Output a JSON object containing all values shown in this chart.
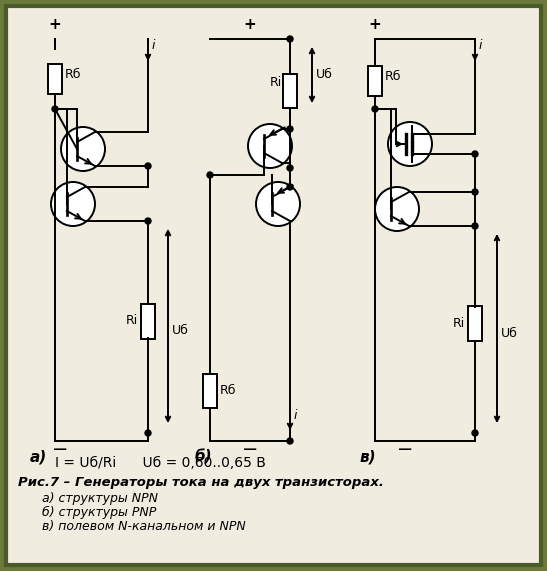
{
  "figure_width": 5.47,
  "figure_height": 5.71,
  "dpi": 100,
  "bg_color": "#6b7a3a",
  "panel_color": "#f0ece0",
  "line_color": "#000000",
  "border_color": "#4a5a2a",
  "title_text": "I = Uб/Ri      Uб = 0,60..0,65 B",
  "caption_line1": "Рис.7 – Генераторы тока на двух транзисторах.",
  "caption_line2": "   а) структуры NPN",
  "caption_line3": "   б) структуры PNP",
  "caption_line4": "   в) полевом N-канальном и NPN",
  "label_a": "а)",
  "label_b": "б)",
  "label_c": "в)"
}
